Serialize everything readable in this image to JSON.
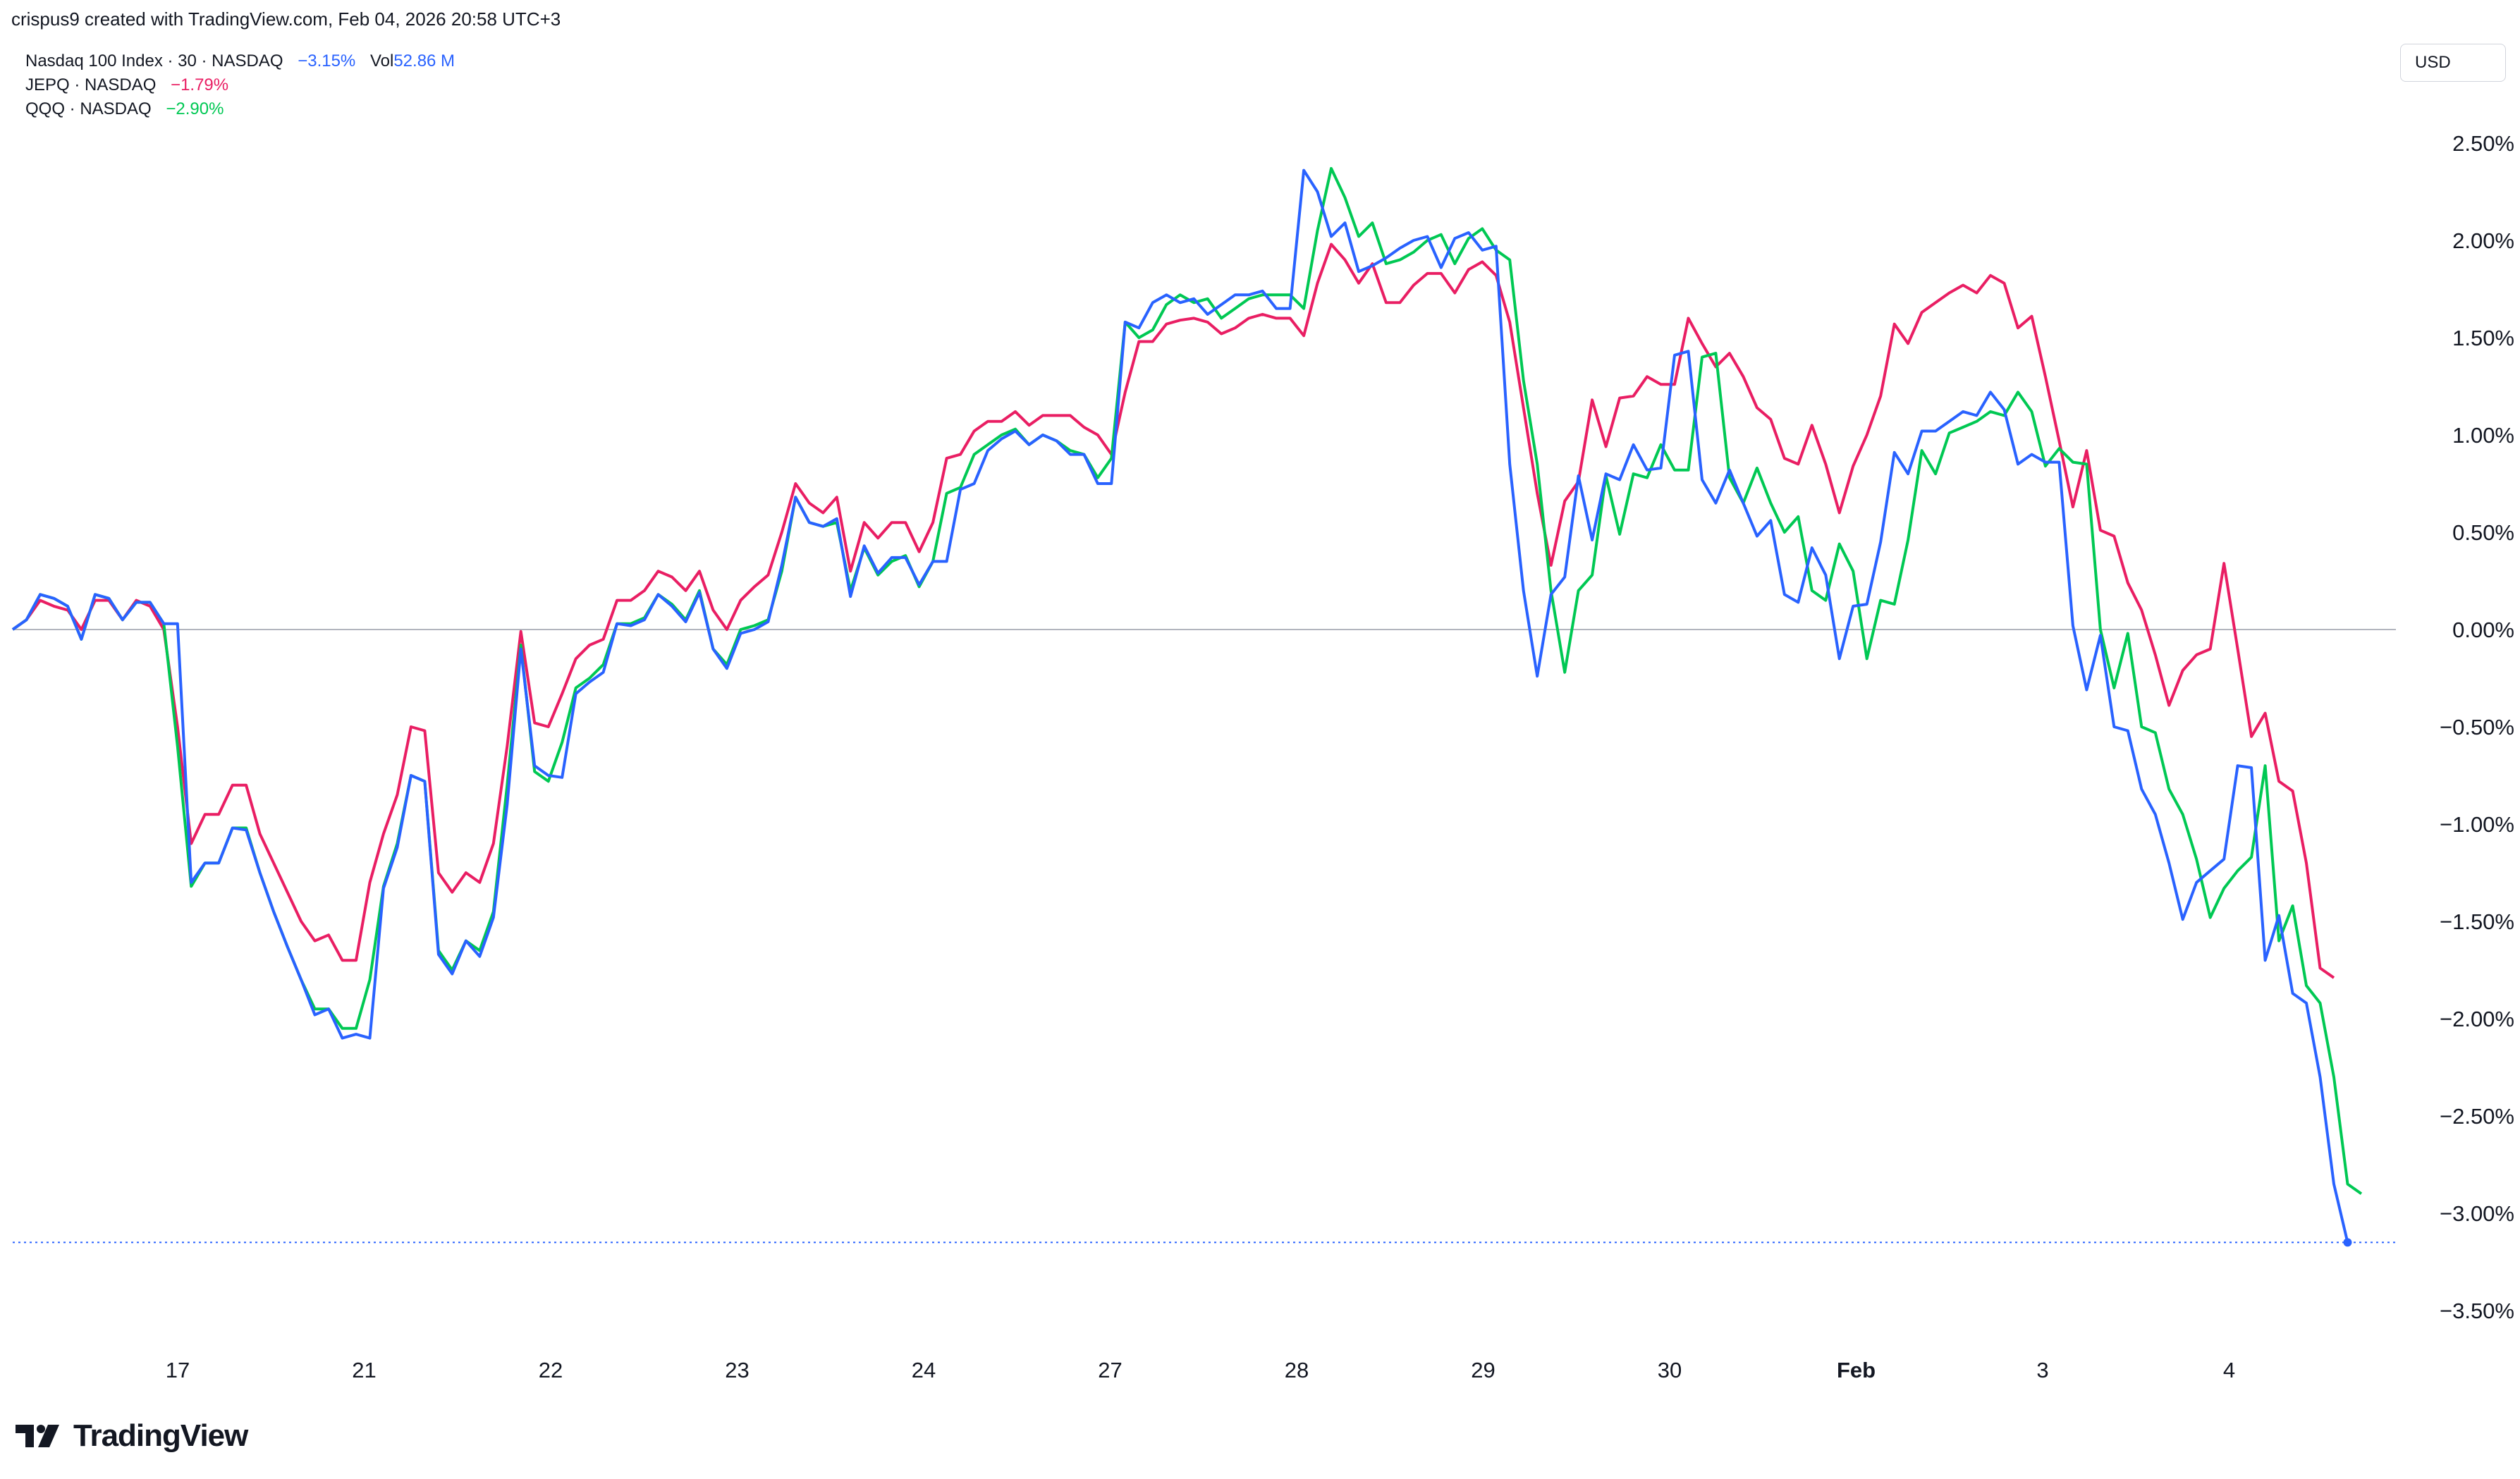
{
  "header": {
    "text": "crispus9 created with TradingView.com, Feb 04, 2026 20:58 UTC+3"
  },
  "legend": {
    "rows": [
      {
        "name": "Nasdaq 100 Index · 30 · NASDAQ",
        "change": "−3.15%",
        "vol_label": "Vol",
        "vol_value": "52.86 M",
        "color": "#2962ff"
      },
      {
        "name": "JEPQ · NASDAQ",
        "change": "−1.79%",
        "color": "#e91e63"
      },
      {
        "name": "QQQ · NASDAQ",
        "change": "−2.90%",
        "color": "#00c853"
      }
    ]
  },
  "currency_button": {
    "label": "USD"
  },
  "brand": {
    "name": "TradingView",
    "icon": "tradingview-logo-icon"
  },
  "chart_data": {
    "type": "line",
    "x_tick_labels": [
      "17",
      "21",
      "22",
      "23",
      "24",
      "27",
      "28",
      "29",
      "30",
      "Feb",
      "3",
      "4"
    ],
    "y_tick_labels": [
      "2.50%",
      "2.00%",
      "1.50%",
      "1.00%",
      "0.50%",
      "0.00%",
      "−0.50%",
      "−1.00%",
      "−1.50%",
      "−2.00%",
      "−2.50%",
      "−3.00%",
      "−3.50%"
    ],
    "y_ticks": [
      2.5,
      2.0,
      1.5,
      1.0,
      0.5,
      0.0,
      -0.5,
      -1.0,
      -1.5,
      -2.0,
      -2.5,
      -3.0,
      -3.5
    ],
    "ylim": [
      -3.85,
      2.85
    ],
    "y_unit": "percent change",
    "grid": false,
    "zero_line": true,
    "last_value_line": -3.15,
    "series": [
      {
        "name": "JEPQ · NASDAQ",
        "color": "#e91e63",
        "values": [
          0.0,
          0.05,
          0.15,
          0.12,
          0.1,
          0.0,
          0.15,
          0.15,
          0.05,
          0.15,
          0.12,
          0.0,
          -0.5,
          -1.1,
          -0.95,
          -0.95,
          -0.8,
          -0.8,
          -1.05,
          -1.2,
          -1.35,
          -1.5,
          -1.6,
          -1.57,
          -1.7,
          -1.7,
          -1.3,
          -1.05,
          -0.85,
          -0.5,
          -0.52,
          -1.25,
          -1.35,
          -1.25,
          -1.3,
          -1.1,
          -0.6,
          -0.01,
          -0.48,
          -0.5,
          -0.33,
          -0.15,
          -0.08,
          -0.05,
          0.15,
          0.15,
          0.2,
          0.3,
          0.27,
          0.2,
          0.3,
          0.1,
          0.0,
          0.15,
          0.22,
          0.28,
          0.5,
          0.75,
          0.65,
          0.6,
          0.68,
          0.3,
          0.55,
          0.47,
          0.55,
          0.55,
          0.4,
          0.55,
          0.88,
          0.9,
          1.02,
          1.07,
          1.07,
          1.12,
          1.05,
          1.1,
          1.1,
          1.1,
          1.04,
          1.0,
          0.9,
          1.22,
          1.48,
          1.48,
          1.57,
          1.59,
          1.6,
          1.58,
          1.52,
          1.55,
          1.6,
          1.62,
          1.6,
          1.6,
          1.51,
          1.78,
          1.98,
          1.9,
          1.78,
          1.88,
          1.68,
          1.68,
          1.77,
          1.83,
          1.83,
          1.73,
          1.85,
          1.89,
          1.82,
          1.58,
          1.14,
          0.7,
          0.33,
          0.66,
          0.76,
          1.18,
          0.94,
          1.19,
          1.2,
          1.3,
          1.26,
          1.26,
          1.6,
          1.47,
          1.35,
          1.42,
          1.3,
          1.14,
          1.08,
          0.88,
          0.85,
          1.05,
          0.85,
          0.6,
          0.84,
          1.0,
          1.2,
          1.57,
          1.47,
          1.63,
          1.68,
          1.73,
          1.77,
          1.73,
          1.82,
          1.78,
          1.55,
          1.61,
          1.3,
          0.97,
          0.63,
          0.92,
          0.51,
          0.48,
          0.24,
          0.1,
          -0.13,
          -0.39,
          -0.21,
          -0.13,
          -0.1,
          0.34,
          -0.1,
          -0.55,
          -0.43,
          -0.78,
          -0.83,
          -1.2,
          -1.74,
          -1.79
        ]
      },
      {
        "name": "QQQ · NASDAQ",
        "color": "#00c853",
        "values": [
          0.0,
          0.05,
          0.18,
          0.16,
          0.12,
          -0.05,
          0.18,
          0.16,
          0.05,
          0.14,
          0.14,
          0.03,
          -0.6,
          -1.32,
          -1.2,
          -1.2,
          -1.02,
          -1.02,
          -1.25,
          -1.45,
          -1.63,
          -1.8,
          -1.95,
          -1.95,
          -2.05,
          -2.05,
          -1.8,
          -1.32,
          -1.1,
          -0.75,
          -0.78,
          -1.65,
          -1.75,
          -1.6,
          -1.65,
          -1.45,
          -0.8,
          -0.08,
          -0.73,
          -0.78,
          -0.58,
          -0.3,
          -0.25,
          -0.18,
          0.03,
          0.03,
          0.06,
          0.18,
          0.13,
          0.05,
          0.2,
          -0.1,
          -0.18,
          -0.0,
          0.02,
          0.05,
          0.3,
          0.68,
          0.55,
          0.53,
          0.55,
          0.2,
          0.42,
          0.28,
          0.35,
          0.38,
          0.22,
          0.35,
          0.7,
          0.73,
          0.9,
          0.95,
          1.0,
          1.03,
          0.95,
          1.0,
          0.97,
          0.92,
          0.9,
          0.78,
          0.88,
          1.58,
          1.5,
          1.54,
          1.67,
          1.72,
          1.68,
          1.7,
          1.6,
          1.65,
          1.7,
          1.72,
          1.72,
          1.72,
          1.65,
          2.05,
          2.37,
          2.22,
          2.02,
          2.09,
          1.88,
          1.9,
          1.94,
          2.0,
          2.03,
          1.88,
          2.01,
          2.06,
          1.95,
          1.9,
          1.28,
          0.85,
          0.2,
          -0.22,
          0.2,
          0.28,
          0.79,
          0.49,
          0.8,
          0.78,
          0.95,
          0.82,
          0.82,
          1.4,
          1.42,
          0.78,
          0.65,
          0.83,
          0.65,
          0.5,
          0.58,
          0.2,
          0.15,
          0.44,
          0.3,
          -0.15,
          0.15,
          0.13,
          0.46,
          0.92,
          0.8,
          1.01,
          1.04,
          1.07,
          1.12,
          1.1,
          1.22,
          1.12,
          0.84,
          0.93,
          0.86,
          0.85,
          0.0,
          -0.3,
          -0.02,
          -0.5,
          -0.53,
          -0.82,
          -0.95,
          -1.18,
          -1.48,
          -1.33,
          -1.24,
          -1.17,
          -0.7,
          -1.6,
          -1.42,
          -1.83,
          -1.92,
          -2.3,
          -2.85,
          -2.9
        ]
      },
      {
        "name": "Nasdaq 100 Index · 30 · NASDAQ",
        "color": "#2962ff",
        "values": [
          0.0,
          0.05,
          0.18,
          0.16,
          0.12,
          -0.05,
          0.18,
          0.16,
          0.05,
          0.14,
          0.14,
          0.03,
          0.03,
          -1.3,
          -1.2,
          -1.2,
          -1.02,
          -1.03,
          -1.25,
          -1.45,
          -1.63,
          -1.8,
          -1.98,
          -1.95,
          -2.1,
          -2.08,
          -2.1,
          -1.33,
          -1.12,
          -0.75,
          -0.78,
          -1.67,
          -1.77,
          -1.6,
          -1.68,
          -1.48,
          -0.9,
          -0.1,
          -0.7,
          -0.75,
          -0.76,
          -0.33,
          -0.27,
          -0.22,
          0.03,
          0.02,
          0.05,
          0.18,
          0.12,
          0.04,
          0.19,
          -0.1,
          -0.2,
          -0.02,
          -0.0,
          0.04,
          0.33,
          0.68,
          0.55,
          0.53,
          0.57,
          0.17,
          0.43,
          0.29,
          0.37,
          0.37,
          0.23,
          0.35,
          0.35,
          0.72,
          0.75,
          0.92,
          0.98,
          1.02,
          0.95,
          1.0,
          0.97,
          0.9,
          0.9,
          0.75,
          0.75,
          1.58,
          1.55,
          1.68,
          1.72,
          1.68,
          1.7,
          1.62,
          1.67,
          1.72,
          1.72,
          1.74,
          1.65,
          1.65,
          2.36,
          2.25,
          2.02,
          2.09,
          1.84,
          1.87,
          1.91,
          1.96,
          2.0,
          2.02,
          1.86,
          2.01,
          2.04,
          1.95,
          1.97,
          0.85,
          0.2,
          -0.24,
          0.18,
          0.27,
          0.79,
          0.46,
          0.8,
          0.77,
          0.95,
          0.82,
          0.83,
          1.41,
          1.43,
          0.77,
          0.65,
          0.82,
          0.65,
          0.48,
          0.56,
          0.18,
          0.14,
          0.42,
          0.28,
          -0.15,
          0.12,
          0.13,
          0.45,
          0.91,
          0.8,
          1.02,
          1.02,
          1.07,
          1.12,
          1.1,
          1.22,
          1.13,
          0.85,
          0.9,
          0.86,
          0.86,
          0.02,
          -0.31,
          -0.03,
          -0.5,
          -0.52,
          -0.82,
          -0.95,
          -1.2,
          -1.49,
          -1.3,
          -1.24,
          -1.18,
          -0.7,
          -0.71,
          -1.7,
          -1.47,
          -1.87,
          -1.92,
          -2.3,
          -2.85,
          -3.15
        ]
      }
    ]
  }
}
